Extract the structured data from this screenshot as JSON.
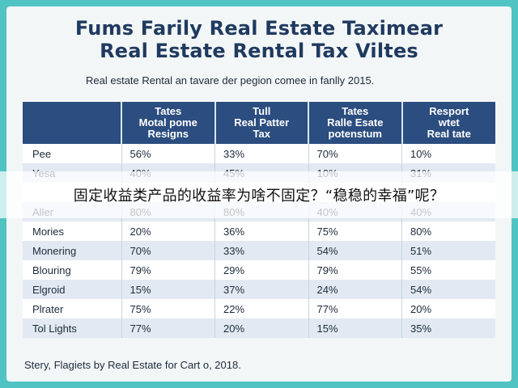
{
  "title_line1": "Fums Farily Real Estate Taximear",
  "title_line2": "Real Estate Rental Tax Viltes",
  "subtitle": "Real estate Rental an tavare der pegion comee in fanlly 2015.",
  "table": {
    "headers": [
      [
        ""
      ],
      [
        "Tates",
        "Motal pome",
        "Resigns"
      ],
      [
        "Tull",
        "Real Patter",
        "Tax"
      ],
      [
        "Tates",
        "Ralle Esate",
        "potenstum"
      ],
      [
        "Resport",
        "wtet",
        "Real tate"
      ]
    ],
    "rows": [
      [
        "Pee",
        "56%",
        "33%",
        "70%",
        "10%"
      ],
      [
        "Yesa",
        "40%",
        "45%",
        "10%",
        "31%"
      ],
      [
        "",
        "",
        "",
        "",
        ""
      ],
      [
        "Aller",
        "80%",
        "80%",
        "40%",
        "40%"
      ],
      [
        "Mories",
        "20%",
        "36%",
        "75%",
        "80%"
      ],
      [
        "Monering",
        "70%",
        "33%",
        "54%",
        "51%"
      ],
      [
        "Blouring",
        "79%",
        "29%",
        "79%",
        "55%"
      ],
      [
        "Elgroid",
        "15%",
        "37%",
        "24%",
        "54%"
      ],
      [
        "Plrater",
        "75%",
        "22%",
        "77%",
        "20%"
      ],
      [
        "Tol Lights",
        "77%",
        "20%",
        "15%",
        "35%"
      ]
    ]
  },
  "footer": "Stery, Flagiets by Real Estate for Cart o, 2018.",
  "caption": "固定收益类产品的收益率为啥不固定？“稳稳的幸福”呢？"
}
